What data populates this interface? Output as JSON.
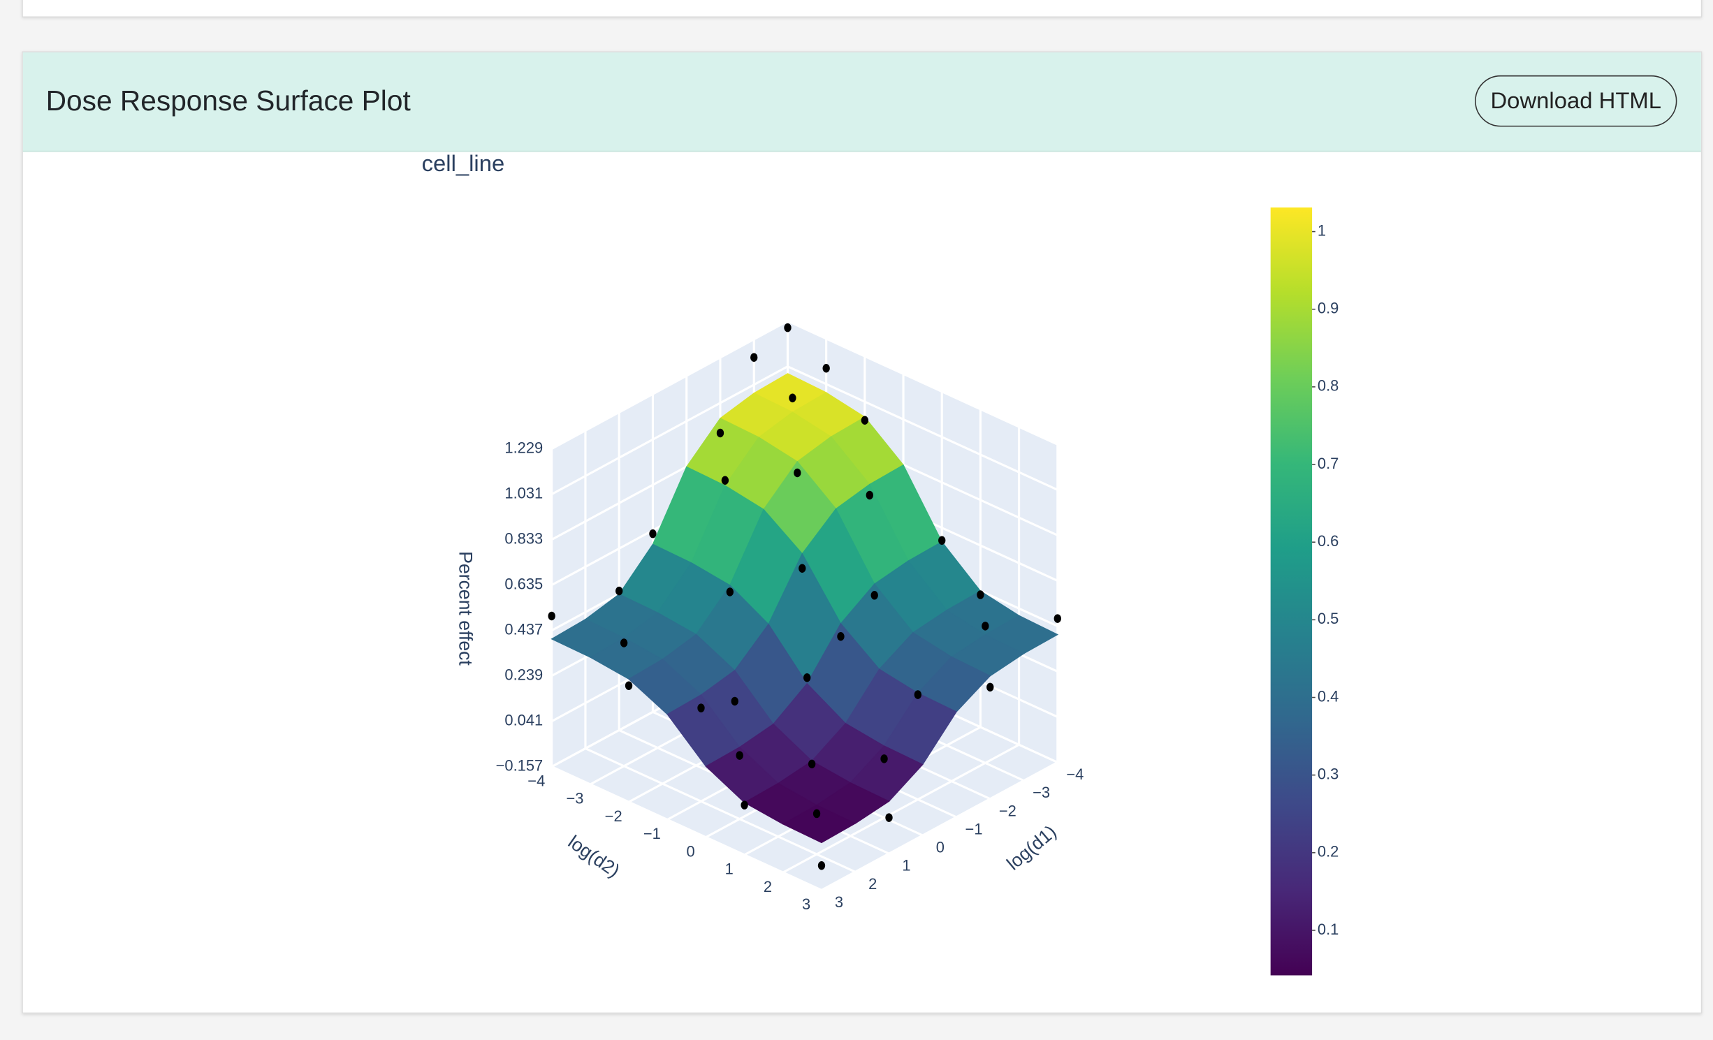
{
  "header": {
    "title": "Dose Response Surface Plot",
    "button": "Download HTML"
  },
  "chart_data": {
    "type": "surface",
    "title": "cell_line",
    "x_label": "log(d1)",
    "y_label": "log(d2)",
    "z_label": "Percent effect",
    "xlim": [
      -4,
      3
    ],
    "ylim": [
      -4,
      3
    ],
    "zlim": [
      -0.157,
      1.229
    ],
    "xticks": [
      {
        "value": -4,
        "label": "−4"
      },
      {
        "value": -3,
        "label": "−3"
      },
      {
        "value": -2,
        "label": "−2"
      },
      {
        "value": -1,
        "label": "−1"
      },
      0,
      1,
      2,
      3
    ],
    "yticks": [
      {
        "value": -4,
        "label": "−4"
      },
      {
        "value": -3,
        "label": "−3"
      },
      {
        "value": -2,
        "label": "−2"
      },
      {
        "value": -1,
        "label": "−1"
      },
      0,
      1,
      2,
      3
    ],
    "zticks": [
      {
        "value": -0.157,
        "label": "−0.157"
      },
      0.041,
      0.239,
      0.437,
      0.635,
      0.833,
      1.031,
      1.229
    ],
    "surface": {
      "x": [
        -4,
        -3,
        -2,
        -1,
        0,
        1,
        2,
        3
      ],
      "y": [
        -4,
        -3,
        -2,
        -1,
        0,
        1,
        2,
        3
      ],
      "z": [
        [
          1.0,
          0.994,
          0.964,
          0.832,
          0.574,
          0.436,
          0.406,
          0.4
        ],
        [
          0.994,
          0.988,
          0.958,
          0.827,
          0.57,
          0.432,
          0.402,
          0.397
        ],
        [
          0.964,
          0.958,
          0.929,
          0.8,
          0.549,
          0.414,
          0.385,
          0.379
        ],
        [
          0.832,
          0.827,
          0.8,
          0.684,
          0.456,
          0.334,
          0.307,
          0.302
        ],
        [
          0.574,
          0.57,
          0.549,
          0.456,
          0.274,
          0.177,
          0.156,
          0.152
        ],
        [
          0.436,
          0.432,
          0.414,
          0.334,
          0.177,
          0.093,
          0.075,
          0.071
        ],
        [
          0.406,
          0.402,
          0.385,
          0.307,
          0.156,
          0.075,
          0.057,
          0.054
        ],
        [
          0.4,
          0.397,
          0.379,
          0.302,
          0.152,
          0.071,
          0.054,
          0.05
        ]
      ]
    },
    "points": {
      "color": "#000000",
      "x": [
        -4,
        -4,
        -3,
        -3,
        -4,
        -2,
        -2,
        -3,
        -1,
        -1,
        0,
        -4,
        0,
        1,
        -4,
        2,
        -3,
        3,
        -4,
        1,
        2,
        3,
        2,
        0,
        1,
        3,
        -1,
        2,
        -2,
        0,
        -1,
        3,
        -2,
        1
      ],
      "y": [
        -4,
        -3,
        -4,
        -3,
        -2,
        -4,
        -2,
        -1,
        -3,
        -1,
        -4,
        0,
        0,
        -4,
        1,
        -3,
        2,
        -4,
        3,
        1,
        2,
        3,
        0,
        2,
        3,
        1,
        2,
        -1,
        0,
        -2,
        0,
        -2,
        3,
        -1
      ],
      "z": [
        1.2,
        1.1,
        1.15,
        1.05,
        0.95,
        0.9,
        0.88,
        0.78,
        0.85,
        0.62,
        0.62,
        0.58,
        0.3,
        0.45,
        0.42,
        0.38,
        0.44,
        0.5,
        0.47,
        0.08,
        0.02,
        -0.05,
        0.12,
        0.1,
        0.0,
        0.06,
        0.3,
        0.25,
        0.5,
        0.52,
        0.4,
        0.35,
        0.33,
        0.2
      ]
    },
    "colorscale": [
      "#440154",
      "#482878",
      "#3e4989",
      "#31688e",
      "#26828e",
      "#1f9e89",
      "#35b779",
      "#6ece58",
      "#b5de2b",
      "#fde725"
    ],
    "clim": [
      0.042,
      1.031
    ],
    "colorbar_ticks": [
      0.1,
      0.2,
      0.3,
      0.4,
      0.5,
      0.6,
      0.7,
      0.8,
      0.9,
      1
    ]
  }
}
